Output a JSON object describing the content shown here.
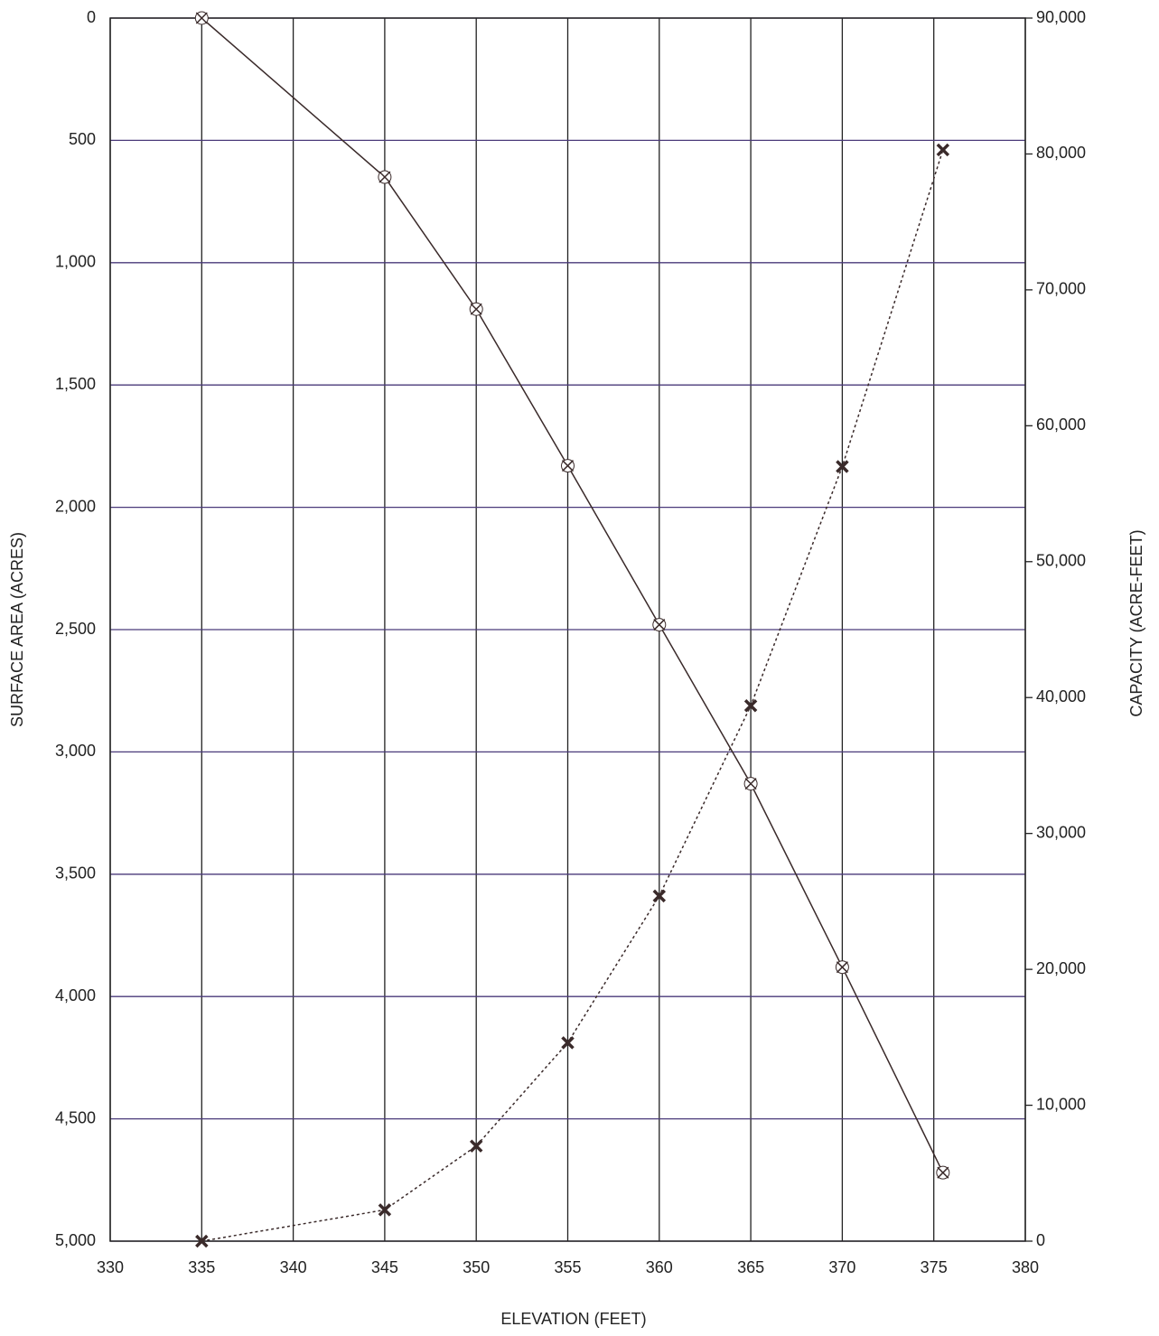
{
  "chart_data": {
    "type": "line",
    "x_label": "ELEVATION (FEET)",
    "y_label": "SURFACE AREA (ACRES)",
    "y2_label": "CAPACITY (ACRE-FEET)",
    "x": [
      335,
      345,
      350,
      355,
      360,
      365,
      370,
      375.5
    ],
    "series": [
      {
        "color": "#3a2a2a",
        "dash": false,
        "marker": "open-x",
        "values": [
          0,
          650,
          1190,
          1830,
          2480,
          3130,
          3880,
          4720
        ]
      },
      {
        "color": "#3a2a2a",
        "dash": true,
        "marker": "filled-x",
        "axis": "y2",
        "values": [
          0,
          2300,
          7000,
          14600,
          25400,
          39400,
          57000,
          80300
        ]
      }
    ],
    "xlim": [
      330,
      380
    ],
    "xticks": [
      330,
      335,
      340,
      345,
      350,
      355,
      360,
      365,
      370,
      375,
      380
    ],
    "ylim": [
      5000,
      0
    ],
    "yticks": [
      0,
      500,
      {
        "value": 1000,
        "label": "1,000"
      },
      {
        "value": 1500,
        "label": "1,500"
      },
      {
        "value": 2000,
        "label": "2,000"
      },
      {
        "value": 2500,
        "label": "2,500"
      },
      {
        "value": 3000,
        "label": "3,000"
      },
      {
        "value": 3500,
        "label": "3,500"
      },
      {
        "value": 4000,
        "label": "4,000"
      },
      {
        "value": 4500,
        "label": "4,500"
      },
      {
        "value": 5000,
        "label": "5,000"
      }
    ],
    "y2lim": [
      0,
      90000
    ],
    "y2ticks": [
      0,
      {
        "value": 10000,
        "label": "10,000"
      },
      {
        "value": 20000,
        "label": "20,000"
      },
      {
        "value": 30000,
        "label": "30,000"
      },
      {
        "value": 40000,
        "label": "40,000"
      },
      {
        "value": 50000,
        "label": "50,000"
      },
      {
        "value": 60000,
        "label": "60,000"
      },
      {
        "value": 70000,
        "label": "70,000"
      },
      {
        "value": 80000,
        "label": "80,000"
      },
      {
        "value": 90000,
        "label": "90,000"
      }
    ],
    "grid": true,
    "grid_color_h": "#4a3a7a",
    "grid_color_v": "#222222"
  }
}
